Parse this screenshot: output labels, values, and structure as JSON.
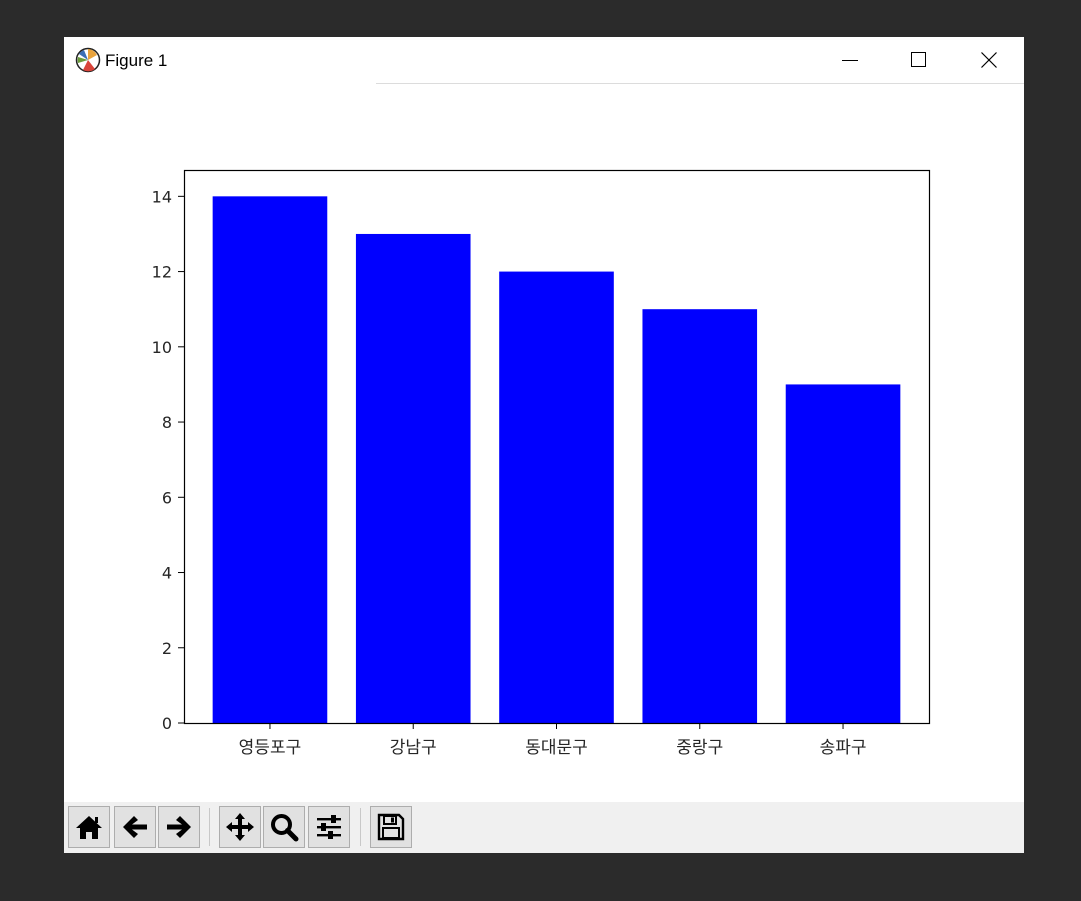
{
  "window": {
    "title": "Figure 1",
    "app_icon": "matplotlib-icon",
    "controls": [
      "minimize-icon",
      "maximize-icon",
      "close-icon"
    ]
  },
  "toolbar": {
    "buttons": [
      "home-icon",
      "back-arrow-icon",
      "forward-arrow-icon",
      "pan-icon",
      "zoom-icon",
      "configure-subplots-icon",
      "save-icon"
    ]
  },
  "chart_data": {
    "type": "bar",
    "categories": [
      "영등포구",
      "강남구",
      "동대문구",
      "중랑구",
      "송파구"
    ],
    "values": [
      14,
      13,
      12,
      11,
      9
    ],
    "title": "",
    "xlabel": "",
    "ylabel": "",
    "ylim": [
      0,
      14.7
    ],
    "yticks": [
      "0",
      "2",
      "4",
      "6",
      "8",
      "10",
      "12",
      "14"
    ],
    "bar_color": "#0000ff",
    "grid": false
  }
}
